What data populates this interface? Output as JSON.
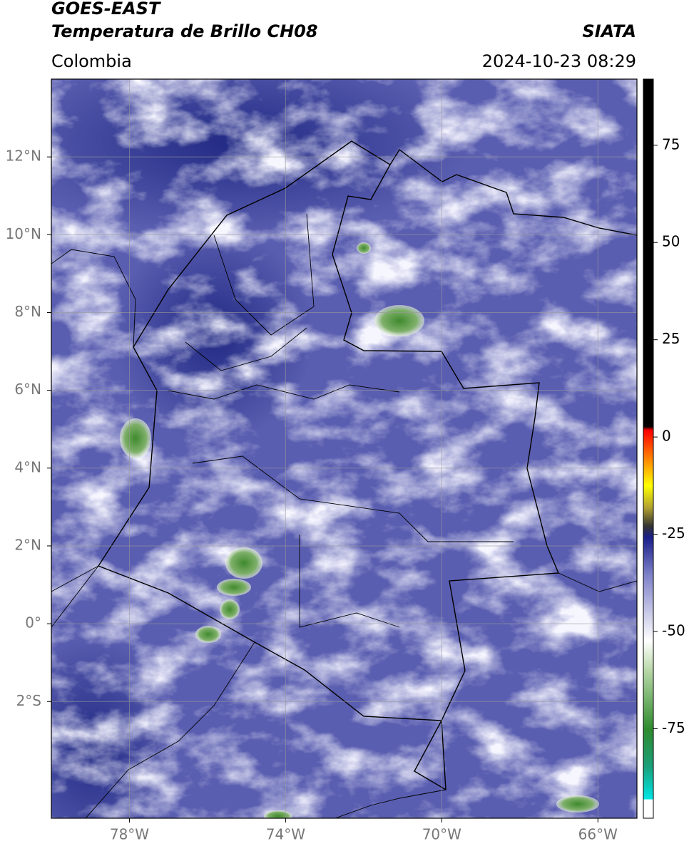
{
  "header": {
    "title_lines": [
      "GOES-EAST",
      "Temperatura de Brillo CH08"
    ],
    "region": "Colombia",
    "source": "SIATA",
    "datetime": "2024-10-23 08:29"
  },
  "map": {
    "xlim": [
      -80,
      -65
    ],
    "ylim": [
      -5,
      14
    ],
    "xticks": [
      {
        "value": -78,
        "label": "78°W"
      },
      {
        "value": -74,
        "label": "74°W"
      },
      {
        "value": -70,
        "label": "70°W"
      },
      {
        "value": -66,
        "label": "66°W"
      }
    ],
    "yticks": [
      {
        "value": 12,
        "label": "12°N"
      },
      {
        "value": 10,
        "label": "10°N"
      },
      {
        "value": 8,
        "label": "8°N"
      },
      {
        "value": 6,
        "label": "6°N"
      },
      {
        "value": 4,
        "label": "4°N"
      },
      {
        "value": 2,
        "label": "2°N"
      },
      {
        "value": 0,
        "label": "0°"
      },
      {
        "value": -2,
        "label": "2°S"
      }
    ],
    "grid": true
  },
  "colorbar": {
    "lim": [
      -98,
      92
    ],
    "ticks": [
      75,
      50,
      25,
      0,
      -25,
      -50,
      -75
    ]
  }
}
